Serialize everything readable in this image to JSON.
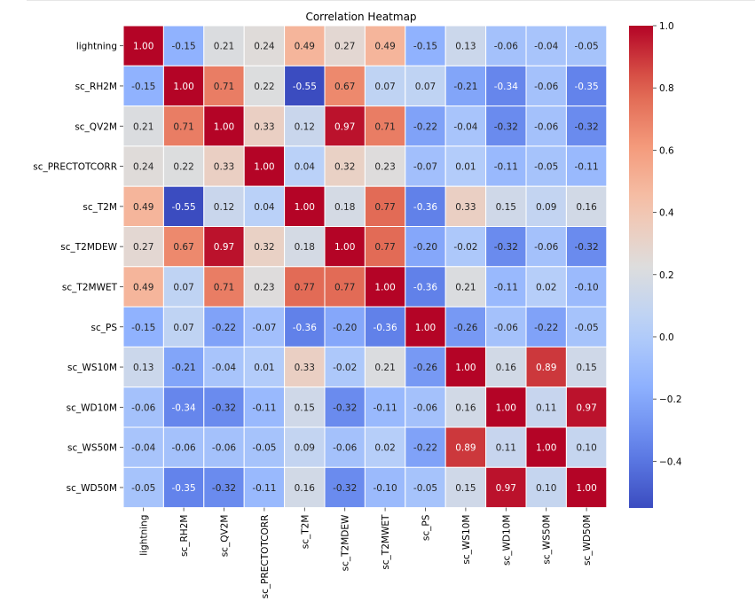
{
  "chart_data": {
    "type": "heatmap",
    "title": "Correlation Heatmap",
    "xlabel": "",
    "ylabel": "",
    "variables": [
      "lightning",
      "sc_RH2M",
      "sc_QV2M",
      "sc_PRECTOTCORR",
      "sc_T2M",
      "sc_T2MDEW",
      "sc_T2MWET",
      "sc_PS",
      "sc_WS10M",
      "sc_WD10M",
      "sc_WS50M",
      "sc_WD50M"
    ],
    "matrix": [
      [
        1.0,
        -0.15,
        0.21,
        0.24,
        0.49,
        0.27,
        0.49,
        -0.15,
        0.13,
        -0.06,
        -0.04,
        -0.05
      ],
      [
        -0.15,
        1.0,
        0.71,
        0.22,
        -0.55,
        0.67,
        0.07,
        0.07,
        -0.21,
        -0.34,
        -0.06,
        -0.35
      ],
      [
        0.21,
        0.71,
        1.0,
        0.33,
        0.12,
        0.97,
        0.71,
        -0.22,
        -0.04,
        -0.32,
        -0.06,
        -0.32
      ],
      [
        0.24,
        0.22,
        0.33,
        1.0,
        0.04,
        0.32,
        0.23,
        -0.07,
        0.01,
        -0.11,
        -0.05,
        -0.11
      ],
      [
        0.49,
        -0.55,
        0.12,
        0.04,
        1.0,
        0.18,
        0.77,
        -0.36,
        0.33,
        0.15,
        0.09,
        0.16
      ],
      [
        0.27,
        0.67,
        0.97,
        0.32,
        0.18,
        1.0,
        0.77,
        -0.2,
        -0.02,
        -0.32,
        -0.06,
        -0.32
      ],
      [
        0.49,
        0.07,
        0.71,
        0.23,
        0.77,
        0.77,
        1.0,
        -0.36,
        0.21,
        -0.11,
        0.02,
        -0.1
      ],
      [
        -0.15,
        0.07,
        -0.22,
        -0.07,
        -0.36,
        -0.2,
        -0.36,
        1.0,
        -0.26,
        -0.06,
        -0.22,
        -0.05
      ],
      [
        0.13,
        -0.21,
        -0.04,
        0.01,
        0.33,
        -0.02,
        0.21,
        -0.26,
        1.0,
        0.16,
        0.89,
        0.15
      ],
      [
        -0.06,
        -0.34,
        -0.32,
        -0.11,
        0.15,
        -0.32,
        -0.11,
        -0.06,
        0.16,
        1.0,
        0.11,
        0.97
      ],
      [
        -0.04,
        -0.06,
        -0.06,
        -0.05,
        0.09,
        -0.06,
        0.02,
        -0.22,
        0.89,
        0.11,
        1.0,
        0.1
      ],
      [
        -0.05,
        -0.35,
        -0.32,
        -0.11,
        0.16,
        -0.32,
        -0.1,
        -0.05,
        0.15,
        0.97,
        0.1,
        1.0
      ]
    ],
    "value_format": "2 decimals",
    "colormap": "coolwarm",
    "colorbar": {
      "min": -0.55,
      "max": 1.0,
      "ticks": [
        1.0,
        0.8,
        0.6,
        0.4,
        0.2,
        0.0,
        -0.2,
        -0.4
      ],
      "tick_labels": [
        "1.0",
        "0.8",
        "0.6",
        "0.4",
        "0.2",
        "0.0",
        "−0.2",
        "−0.4"
      ]
    },
    "grid": true,
    "legend": "colorbar-right"
  }
}
